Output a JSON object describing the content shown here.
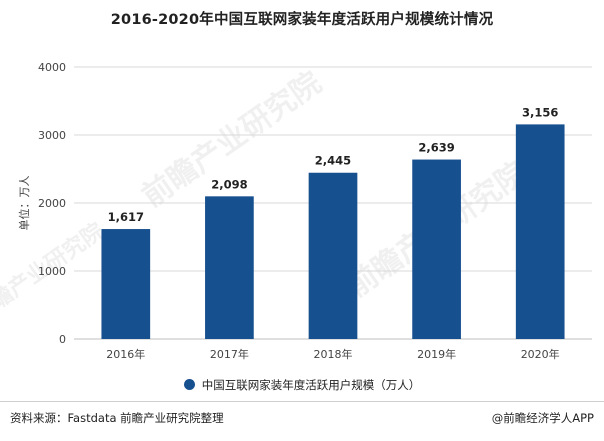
{
  "title": "2016-2020年中国互联网家装年度活跃用户规模统计情况",
  "legend_label": "中国互联网家装年度活跃用户规模（万人）",
  "source": "资料来源：Fastdata 前瞻产业研究院整理",
  "brand": "@前瞻经济学人APP",
  "watermark": "前瞻产业研究院",
  "colors": {
    "bar": "#17508f",
    "grid": "#d9d9d9",
    "axis": "#bfbfbf"
  },
  "chart_data": {
    "type": "bar",
    "title": "2016-2020年中国互联网家装年度活跃用户规模统计情况",
    "categories": [
      "2016年",
      "2017年",
      "2018年",
      "2019年",
      "2020年"
    ],
    "series": [
      {
        "name": "中国互联网家装年度活跃用户规模（万人）",
        "values": [
          1617,
          2098,
          2445,
          2639,
          3156
        ]
      }
    ],
    "data_labels": [
      "1,617",
      "2,098",
      "2,445",
      "2,639",
      "3,156"
    ],
    "ylabel": "单位：万人",
    "xlabel": "",
    "ylim": [
      0,
      4000
    ],
    "yticks": [
      0,
      1000,
      2000,
      3000,
      4000
    ],
    "grid": true,
    "legend_position": "bottom"
  }
}
